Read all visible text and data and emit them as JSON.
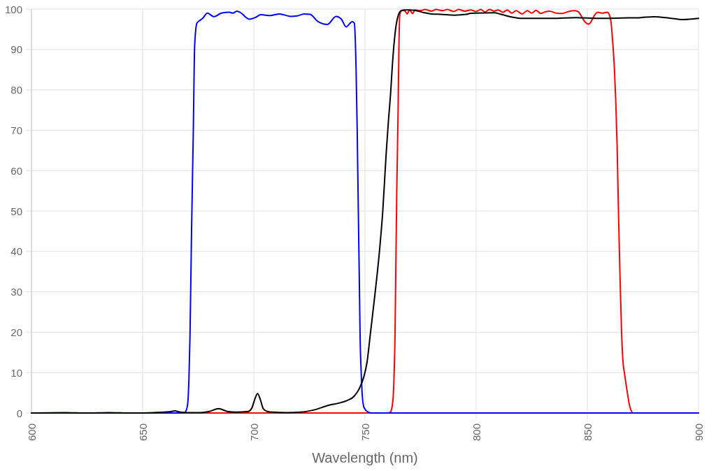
{
  "chart_data": {
    "type": "line",
    "xlabel": "Wavelength (nm)",
    "xlim": [
      600,
      900
    ],
    "ylim": [
      0,
      100
    ],
    "xticks": [
      600,
      650,
      700,
      750,
      800,
      850,
      900
    ],
    "yticks": [
      0,
      10,
      20,
      30,
      40,
      50,
      60,
      70,
      80,
      90,
      100
    ],
    "grid": true,
    "series": [
      {
        "color": "#ff0000",
        "x": [
          600,
          760,
          761.4,
          762.3,
          763,
          763.5,
          763.9,
          764.3,
          764.9,
          765.3,
          765.7,
          766.7,
          768,
          769,
          770,
          771.4,
          772.5,
          775,
          777,
          780,
          782,
          785,
          787,
          790,
          792,
          795,
          797.6,
          800,
          802,
          804,
          806,
          808,
          810,
          812,
          814,
          816,
          818,
          820.7,
          823,
          825,
          827,
          829,
          831,
          833,
          836,
          838.5,
          841,
          844.2,
          845.8,
          847.9,
          849,
          850.5,
          851.5,
          852.6,
          854.7,
          856.8,
          858.9,
          859.9,
          860.7,
          861.4,
          862.2,
          862.8,
          863.4,
          864,
          864.6,
          865.4,
          866,
          866.8,
          867.9,
          869,
          870.6,
          900
        ],
        "values": [
          0,
          0,
          0.2,
          1.9,
          7.7,
          19,
          37,
          55,
          75,
          92,
          98.8,
          99.7,
          99.5,
          98.8,
          99.8,
          98.9,
          99.8,
          99.6,
          99.9,
          99.5,
          99.9,
          99.6,
          99.9,
          99.4,
          99.9,
          99.5,
          99.8,
          99.4,
          99.9,
          99.3,
          99.9,
          99.5,
          99.8,
          99.2,
          99.8,
          99.0,
          99.6,
          98.8,
          99.6,
          99.0,
          99.7,
          98.9,
          99.3,
          99.5,
          99.0,
          98.9,
          99.3,
          99.6,
          99.4,
          97.7,
          96.8,
          96.3,
          96.7,
          97.9,
          99.2,
          99.0,
          99.2,
          98.6,
          96.5,
          92,
          85,
          77,
          66,
          50,
          36,
          20,
          13,
          9.5,
          5.4,
          1.8,
          0,
          0
        ]
      },
      {
        "color": "#0000ff",
        "x": [
          600,
          665,
          668.5,
          669.3,
          670.2,
          670.8,
          671.3,
          672,
          672.8,
          673.4,
          674.4,
          675.5,
          677,
          679.1,
          682.1,
          685.4,
          689.1,
          690.6,
          692.4,
          693.8,
          698,
          700.6,
          703.2,
          707.4,
          711.6,
          716.4,
          719.5,
          722.6,
          725.3,
          728.9,
          733.1,
          737,
          739.4,
          741.5,
          744.3,
          745.2,
          746,
          746.5,
          747,
          747.4,
          747.8,
          748.3,
          748.8,
          749.6,
          751.5,
          753,
          900
        ],
        "values": [
          0,
          0,
          0,
          0.3,
          2,
          8,
          19,
          45,
          70,
          91,
          96.5,
          97.1,
          97.7,
          99,
          98.1,
          99,
          99.2,
          99.0,
          99.5,
          99.2,
          97.5,
          97.9,
          98.6,
          98.4,
          98.8,
          98.2,
          98.3,
          98.8,
          98.7,
          96.9,
          96.2,
          98.2,
          97.5,
          95.6,
          96.9,
          96.5,
          85,
          70,
          50,
          35,
          19,
          10,
          4.2,
          1.3,
          0.2,
          0,
          0
        ]
      },
      {
        "color": "#000000",
        "x": [
          600,
          615,
          625,
          635,
          645,
          655,
          662,
          664.5,
          667,
          670,
          676,
          680,
          684.2,
          688,
          692,
          697.6,
          699.1,
          700.5,
          701.7,
          703,
          704.3,
          706,
          708.5,
          715,
          721,
          727.4,
          733.6,
          737.8,
          742,
          745.2,
          747.3,
          749.4,
          750.9,
          752.5,
          754.6,
          756.5,
          758,
          759.5,
          760.5,
          761.5,
          762.3,
          763,
          764,
          765,
          766,
          767.7,
          770,
          772.4,
          776.6,
          779.8,
          784,
          790.3,
          795.5,
          797.1,
          799.7,
          808,
          811.2,
          815.4,
          820.7,
          827,
          834.3,
          844.8,
          855.2,
          865.7,
          874.1,
          879.9,
          886.7,
          893,
          900
        ],
        "values": [
          0,
          0.1,
          0,
          0.1,
          0,
          0.1,
          0.3,
          0.5,
          0.2,
          0.1,
          0.1,
          0.4,
          1.1,
          0.4,
          0.2,
          0.4,
          1.2,
          3.5,
          4.8,
          3.2,
          1.0,
          0.4,
          0.2,
          0.1,
          0.2,
          0.8,
          1.9,
          2.4,
          3.1,
          4.2,
          5.9,
          8.8,
          12.5,
          20,
          30,
          40,
          50,
          64,
          72,
          79,
          86,
          91,
          96,
          98.5,
          99.5,
          99.8,
          99.8,
          99.7,
          99.1,
          98.8,
          98.7,
          98.5,
          98.7,
          98.9,
          99.0,
          99.1,
          98.7,
          98.1,
          97.7,
          97.7,
          97.7,
          97.9,
          97.7,
          97.8,
          97.9,
          98.1,
          97.8,
          97.4,
          97.7
        ]
      }
    ]
  }
}
